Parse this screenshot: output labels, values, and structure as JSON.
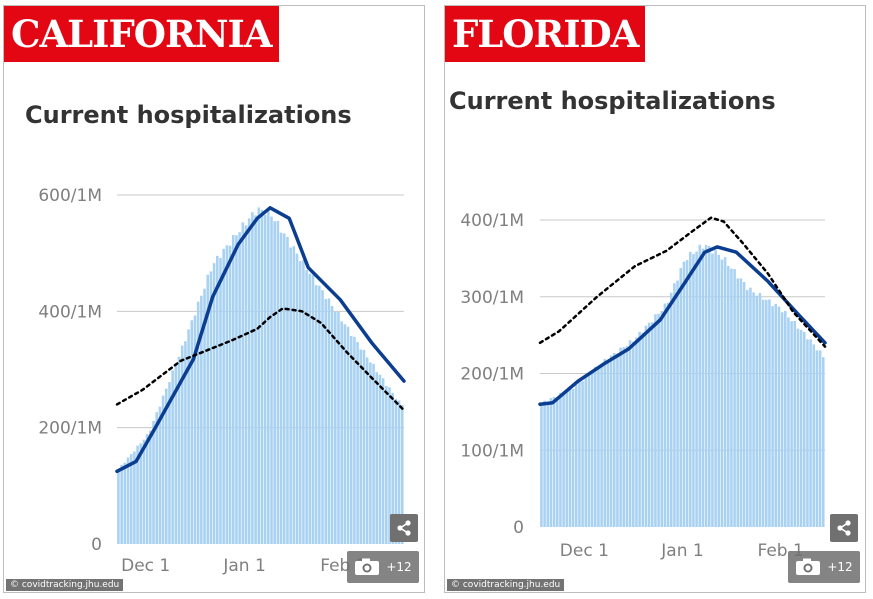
{
  "panels": [
    {
      "state": "CALIFORNIA",
      "title": "Current hospitalizations",
      "source": "© covidtracking.jhu.edu",
      "gallery_count": "+12",
      "icons": {
        "share": "share-icon",
        "camera": "camera-icon"
      },
      "colors": {
        "bars": "#a9d2f2",
        "line": "#0b3d91",
        "dashed": "#000000",
        "label_bg": "#e30613"
      }
    },
    {
      "state": "FLORIDA",
      "title": "Current hospitalizations",
      "source": "© covidtracking.jhu.edu",
      "gallery_count": "+12",
      "icons": {
        "share": "share-icon",
        "camera": "camera-icon"
      },
      "colors": {
        "bars": "#a9d2f2",
        "line": "#0b3d91",
        "dashed": "#000000",
        "label_bg": "#e30613"
      }
    }
  ],
  "chart_data": [
    {
      "type": "bar",
      "title": "Current hospitalizations",
      "y_ticks": [
        "0",
        "200/1M",
        "400/1M",
        "600/1M"
      ],
      "y_tick_values": [
        0,
        200,
        400,
        600
      ],
      "ylim": [
        0,
        600
      ],
      "x_ticks": [
        "Dec 1",
        "Jan 1",
        "Feb 1"
      ],
      "x_tick_days": [
        9,
        40,
        71
      ],
      "days": 90,
      "grid": true,
      "bar_days": [
        0,
        10,
        20,
        30,
        40,
        44,
        48,
        54,
        60,
        70,
        80,
        89
      ],
      "bar_values": [
        125,
        190,
        330,
        480,
        550,
        575,
        570,
        520,
        470,
        390,
        310,
        240
      ],
      "series": [
        {
          "days": [
            0,
            6,
            12,
            24,
            30,
            38,
            44,
            48,
            54,
            60,
            70,
            80,
            90
          ],
          "values": [
            125,
            142,
            200,
            318,
            425,
            515,
            560,
            578,
            560,
            475,
            420,
            345,
            280
          ]
        },
        {
          "days": [
            0,
            8,
            20,
            36,
            44,
            48,
            52,
            58,
            64,
            72,
            80,
            90
          ],
          "values": [
            240,
            265,
            315,
            350,
            370,
            390,
            405,
            400,
            380,
            330,
            285,
            230
          ]
        }
      ]
    },
    {
      "type": "bar",
      "title": "Current hospitalizations",
      "y_ticks": [
        "0",
        "100/1M",
        "200/1M",
        "300/1M",
        "400/1M"
      ],
      "y_tick_values": [
        0,
        100,
        200,
        300,
        400
      ],
      "ylim": [
        0,
        400
      ],
      "x_ticks": [
        "Dec 1",
        "Jan 1",
        "Feb 1"
      ],
      "x_tick_days": [
        14,
        45,
        76
      ],
      "days": 90,
      "grid": true,
      "bar_days": [
        0,
        10,
        20,
        30,
        40,
        46,
        52,
        58,
        66,
        76,
        84,
        90
      ],
      "bar_values": [
        160,
        180,
        215,
        245,
        290,
        350,
        368,
        350,
        310,
        285,
        250,
        220
      ],
      "series": [
        {
          "days": [
            0,
            4,
            12,
            20,
            28,
            38,
            46,
            52,
            56,
            62,
            72,
            82,
            90
          ],
          "values": [
            160,
            162,
            190,
            212,
            232,
            270,
            320,
            358,
            365,
            358,
            320,
            275,
            240
          ]
        },
        {
          "days": [
            0,
            6,
            18,
            30,
            40,
            48,
            54,
            58,
            64,
            72,
            80,
            90
          ],
          "values": [
            240,
            255,
            300,
            340,
            360,
            385,
            403,
            398,
            370,
            330,
            280,
            235
          ]
        }
      ]
    }
  ]
}
